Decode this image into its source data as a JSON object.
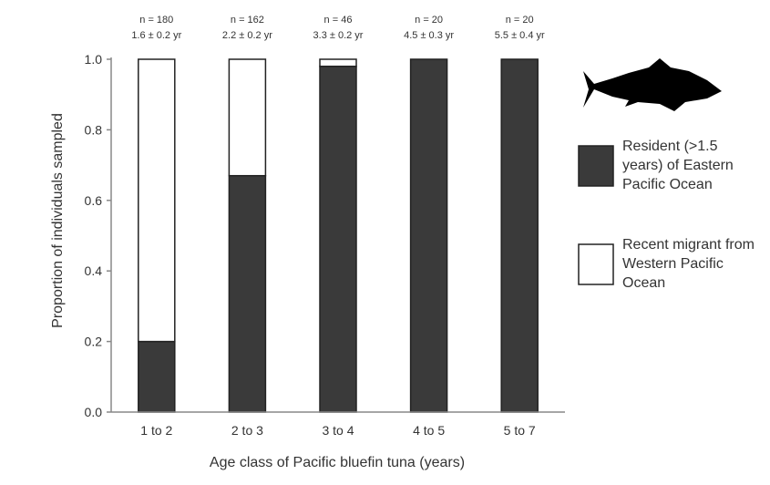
{
  "chart_data": {
    "type": "stacked-bar",
    "x_label": "Age class of Pacific bluefin tuna (years)",
    "y_label": "Proportion of individuals sampled",
    "categories": [
      "1 to 2",
      "2 to 3",
      "3 to 4",
      "4 to 5",
      "5 to 7"
    ],
    "series": [
      {
        "name": "Resident (>1.5 years) of Eastern Pacific Ocean",
        "color": "#3a3a3a",
        "values": [
          0.2,
          0.67,
          0.98,
          1.0,
          1.0
        ]
      },
      {
        "name": "Recent migrant from Western Pacific Ocean",
        "color": "#ffffff",
        "values": [
          0.8,
          0.33,
          0.02,
          0,
          0
        ]
      }
    ],
    "annotations": [
      {
        "n": "n = 180",
        "age": "1.6 ± 0.2 yr"
      },
      {
        "n": "n = 162",
        "age": "2.2 ± 0.2 yr"
      },
      {
        "n": "n = 46",
        "age": "3.3 ± 0.2 yr"
      },
      {
        "n": "n = 20",
        "age": "4.5 ± 0.3 yr"
      },
      {
        "n": "n = 20",
        "age": "5.5 ± 0.4 yr"
      }
    ],
    "ylim": [
      0,
      1
    ],
    "yticks": [
      {
        "value": 0,
        "label": "0.0"
      },
      0.2,
      0.4,
      0.6,
      0.8,
      {
        "value": 1,
        "label": "1.0"
      }
    ],
    "legend": "right"
  }
}
